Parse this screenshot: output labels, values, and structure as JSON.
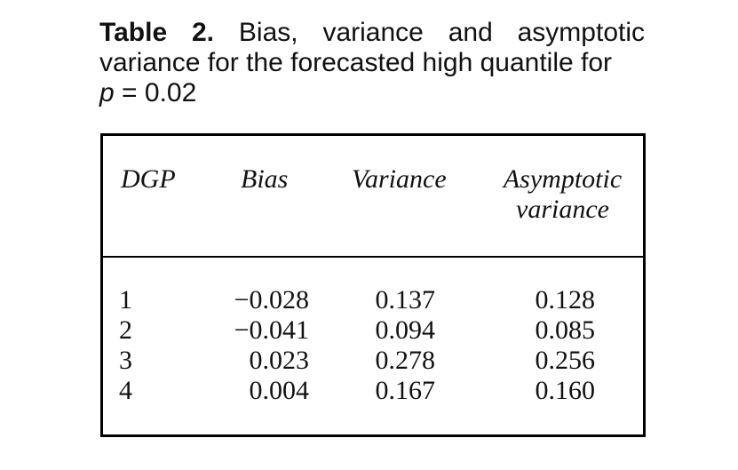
{
  "caption": {
    "label": "Table 2.",
    "text_line1": "Bias, variance and asymptotic",
    "text_line2": "variance for the forecasted high quantile for",
    "p_symbol": "p",
    "p_value": " = 0.02"
  },
  "table": {
    "headers": {
      "dgp": "DGP",
      "bias": "Bias",
      "variance": "Variance",
      "asymptotic_line1": "Asymptotic",
      "asymptotic_line2": "variance"
    },
    "rows": [
      {
        "dgp": "1",
        "bias": "−0.028",
        "variance": "0.137",
        "asymptotic": "0.128"
      },
      {
        "dgp": "2",
        "bias": "−0.041",
        "variance": "0.094",
        "asymptotic": "0.085"
      },
      {
        "dgp": "3",
        "bias": "0.023",
        "variance": "0.278",
        "asymptotic": "0.256"
      },
      {
        "dgp": "4",
        "bias": "0.004",
        "variance": "0.167",
        "asymptotic": "0.160"
      }
    ]
  }
}
